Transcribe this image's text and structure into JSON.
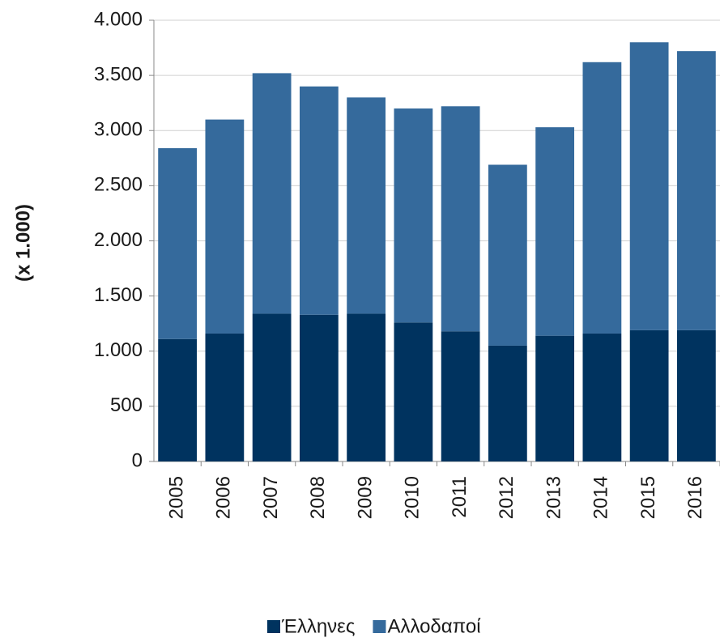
{
  "chart_data": {
    "type": "stacked_bar",
    "y_label": "(x 1.000)",
    "categories": [
      "2005",
      "2006",
      "2007",
      "2008",
      "2009",
      "2010",
      "2011",
      "2012",
      "2013",
      "2014",
      "2015",
      "2016"
    ],
    "series": [
      {
        "name": "Έλληνες",
        "color": "#00335f",
        "values": [
          1110,
          1160,
          1340,
          1330,
          1340,
          1260,
          1180,
          1050,
          1140,
          1160,
          1190,
          1190
        ]
      },
      {
        "name": "Αλλοδαποί",
        "color": "#356a9c",
        "values": [
          1730,
          1940,
          2180,
          2070,
          1960,
          1940,
          2040,
          1640,
          1890,
          2460,
          2610,
          2530
        ]
      }
    ],
    "ylim": [
      0,
      4000
    ],
    "yticks": [
      0,
      500,
      {
        "value": 1000,
        "label": "1.000"
      },
      {
        "value": 1500,
        "label": "1.500"
      },
      {
        "value": 2000,
        "label": "2.000"
      },
      {
        "value": 2500,
        "label": "2.500"
      },
      {
        "value": 3000,
        "label": "3.000"
      },
      {
        "value": 3500,
        "label": "3.500"
      },
      {
        "value": 4000,
        "label": "4.000"
      }
    ],
    "grid": true,
    "legend": "bottom"
  }
}
